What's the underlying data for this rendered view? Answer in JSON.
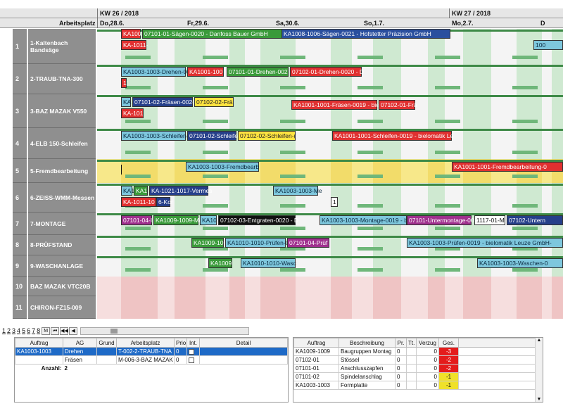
{
  "header": {
    "resource_label": "Arbeitsplatz",
    "weeks": [
      {
        "label": "KW 26 / 2018"
      },
      {
        "label": "KW 27 / 2018"
      }
    ],
    "days": [
      {
        "label": "Do,28.6."
      },
      {
        "label": "Fr,29.6."
      },
      {
        "label": "Sa,30.6."
      },
      {
        "label": "So,1.7."
      },
      {
        "label": "Mo,2.7."
      },
      {
        "label": "D"
      }
    ]
  },
  "rows": [
    {
      "num": "1",
      "name": "1-Kaltenbach Bandsäge",
      "tasks": [
        {
          "label": "KA1001-",
          "color": "red"
        },
        {
          "label": "07101-01-Sägen-0020 - Danfoss Bauer GmbH",
          "color": "green"
        },
        {
          "label": "KA1008-1006-Sägen-0021 - Hofstetter Präzision GmbH",
          "color": "blue"
        },
        {
          "label": "KA-1011-",
          "color": "red"
        },
        {
          "label": "100",
          "color": "cyan"
        }
      ]
    },
    {
      "num": "2",
      "name": "2-TRAUB-TNA-300",
      "tasks": [
        {
          "label": "KA1003-1003-Drehen-00",
          "color": "cyan"
        },
        {
          "label": "KA1001-100",
          "color": "red"
        },
        {
          "label": "07101-01-Drehen-002",
          "color": "green"
        },
        {
          "label": "07102-01-Drehen-0020 - D",
          "color": "red"
        },
        {
          "label": "1'",
          "color": "red"
        }
      ]
    },
    {
      "num": "3",
      "name": "3-BAZ MAZAK V550",
      "tasks": [
        {
          "label": "KA",
          "color": "cyan"
        },
        {
          "label": "07101-02-Fräsen-002(",
          "color": "navy"
        },
        {
          "label": "07102-02-Frä",
          "color": "yellow"
        },
        {
          "label": "KA1001-1001-Fräsen-0019 - biel",
          "color": "red"
        },
        {
          "label": "07102-01-Frä",
          "color": "red"
        },
        {
          "label": "KA-101",
          "color": "red"
        }
      ]
    },
    {
      "num": "4",
      "name": "4-ELB 150-Schleifen",
      "tasks": [
        {
          "label": "KA1003-1003-Schleifen-",
          "color": "cyan"
        },
        {
          "label": "07101-02-Schleife",
          "color": "navy"
        },
        {
          "label": "07102-02-Schleifen-(",
          "color": "yellow"
        },
        {
          "label": "KA1001-1001-Schleifen-0019 - bielomatik Le",
          "color": "red"
        }
      ]
    },
    {
      "num": "5",
      "name": "5-Fremdbearbeitung",
      "tasks": [
        {
          "label": "KA1003-1003-Fremdbearb",
          "color": "cyan"
        },
        {
          "label": "KA1001-1001-Fremdbearbeitung-0",
          "color": "red"
        }
      ]
    },
    {
      "num": "6",
      "name": "6-ZEISS-WMM-Messen",
      "tasks": [
        {
          "label": "KA1",
          "color": "cyan"
        },
        {
          "label": "KA1",
          "color": "green"
        },
        {
          "label": "KA-1021-1017-Vermes",
          "color": "navy"
        },
        {
          "label": "KA1003-1003-Me",
          "color": "cyan"
        },
        {
          "label": "KA-1011-10",
          "color": "red"
        },
        {
          "label": "6-Kor",
          "color": "navy"
        },
        {
          "label": "1",
          "color": "white"
        }
      ]
    },
    {
      "num": "7",
      "name": "7-MONTAGE",
      "tasks": [
        {
          "label": "07101-04-I",
          "color": "purple"
        },
        {
          "label": "KA1009-1009-Mo",
          "color": "green"
        },
        {
          "label": "KA10",
          "color": "cyan"
        },
        {
          "label": "07102-03-Entgraten-0020 - D",
          "color": "black"
        },
        {
          "label": "KA1003-1003-Montage-0019 - bi",
          "color": "cyan"
        },
        {
          "label": "07101-Untermontage-00",
          "color": "purple"
        },
        {
          "label": "1117-01-M",
          "color": "white"
        },
        {
          "label": "07102-Untern",
          "color": "navy"
        }
      ]
    },
    {
      "num": "8",
      "name": "8-PRÜFSTAND",
      "tasks": [
        {
          "label": "KA1009-10",
          "color": "green"
        },
        {
          "label": "KA1010-1010-Prüfen-0",
          "color": "cyan"
        },
        {
          "label": "07101-04-Prüf",
          "color": "purple"
        },
        {
          "label": "KA1003-1003-Prüfen-0019 - bielomatik Leuze GmbH-",
          "color": "cyan"
        }
      ]
    },
    {
      "num": "9",
      "name": "9-WASCHANLAGE",
      "tasks": [
        {
          "label": "KA1009",
          "color": "green"
        },
        {
          "label": "KA1010-1010-Wasc",
          "color": "cyan"
        },
        {
          "label": "KA1003-1003-Waschen-0",
          "color": "cyan"
        }
      ]
    },
    {
      "num": "10",
      "name": "BAZ MAZAK VTC20B",
      "tasks": []
    },
    {
      "num": "11",
      "name": "CHIRON-FZ15-009",
      "tasks": []
    }
  ],
  "pager": {
    "pages": [
      "1",
      "2",
      "3",
      "4",
      "5",
      "6",
      "7",
      "8"
    ],
    "controls": [
      "M",
      "⏮",
      "◀◀",
      "◀"
    ]
  },
  "left_table": {
    "columns": [
      "Auftrag",
      "AG",
      "Grund",
      "Arbeitsplatz",
      "Prio",
      "Int.",
      "Detail"
    ],
    "rows": [
      {
        "auftrag": "KA1003-1003",
        "ag": "Drehen",
        "grund": "",
        "arbeitsplatz": "T-002-2-TRAUB-TNA",
        "prio": "0",
        "int": "",
        "detail": ""
      },
      {
        "auftrag": "",
        "ag": "Fräsen",
        "grund": "",
        "arbeitsplatz": "M-006-3-BAZ MAZAK",
        "prio": "0",
        "int": "",
        "detail": ""
      }
    ],
    "count_label": "Anzahl:",
    "count_value": "2"
  },
  "right_table": {
    "columns": [
      "Auftrag",
      "Beschreibung",
      "Pr.",
      "Tt.",
      "Verzug",
      "Ges."
    ],
    "rows": [
      {
        "auftrag": "KA1009-1009",
        "beschreibung": "Baugruppen Montag",
        "pr": "0",
        "tt": "",
        "verzug": "0",
        "ges": "-3",
        "level": "red"
      },
      {
        "auftrag": "07102-01",
        "beschreibung": "Stössel",
        "pr": "0",
        "tt": "",
        "verzug": "0",
        "ges": "-2",
        "level": "red"
      },
      {
        "auftrag": "07101-01",
        "beschreibung": "Anschlusszapfen",
        "pr": "0",
        "tt": "",
        "verzug": "0",
        "ges": "-2",
        "level": "red"
      },
      {
        "auftrag": "07101-02",
        "beschreibung": "Spindelanschlag",
        "pr": "0",
        "tt": "",
        "verzug": "0",
        "ges": "-1",
        "level": "yellow"
      },
      {
        "auftrag": "KA1003-1003",
        "beschreibung": "Formplatte",
        "pr": "0",
        "tt": "",
        "verzug": "0",
        "ges": "-1",
        "level": "yellow"
      }
    ]
  }
}
